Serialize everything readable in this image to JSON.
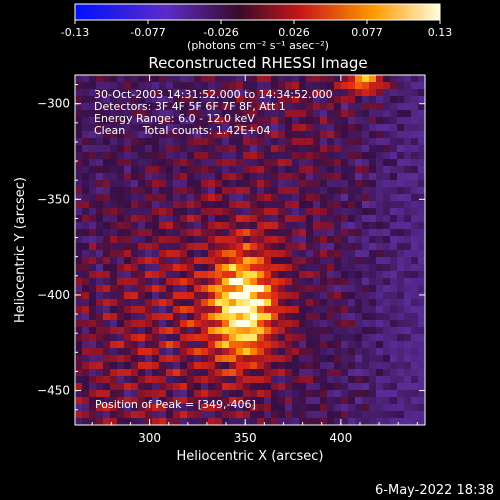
{
  "chart_data": {
    "type": "heatmap",
    "title": "Reconstructed RHESSI Image",
    "xlabel": "Heliocentric X (arcsec)",
    "ylabel": "Heliocentric Y (arcsec)",
    "xlim": [
      261,
      444
    ],
    "ylim": [
      -468,
      -285
    ],
    "x_ticks": [
      300,
      350,
      400
    ],
    "y_ticks": [
      -300,
      -350,
      -400,
      -450
    ],
    "colorbar": {
      "min": -0.13,
      "max": 0.13,
      "ticks": [
        "-0.13",
        "-0.077",
        "-0.026",
        "0.026",
        "0.077",
        "0.13"
      ],
      "unit_text": "(photons cm⁻² s⁻¹ asec⁻²)"
    },
    "annotations": [
      "30-Oct-2003 14:31:52.000 to 14:34:52.000",
      "Detectors: 3F 4F 5F 6F 7F 8F, Att 1",
      "Energy Range: 6.0 - 12.0 keV",
      "Clean     Total counts: 1.42E+04"
    ],
    "peak": {
      "x": 349,
      "y": -406,
      "label": "Position of Peak = [349,-406]"
    },
    "grid": false
  },
  "footer": {
    "timestamp": "6-May-2022 18:38"
  }
}
